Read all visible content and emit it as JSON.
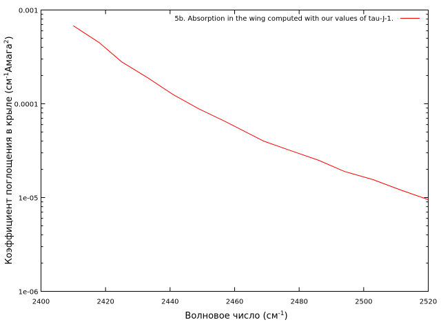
{
  "chart_data": {
    "type": "line",
    "title": "",
    "xlabel": "Волновое число (см",
    "xlabel_sup": "-1",
    "xlabel_end": ")",
    "ylabel_parts": [
      "Коэффициент поглощения в крыле (см",
      "-1",
      "Амага",
      "2",
      ")"
    ],
    "xlim": [
      2400,
      2520
    ],
    "ylim": [
      1e-06,
      0.001
    ],
    "y_scale": "log",
    "grid": false,
    "legend_position": "top-right",
    "x_ticks": [
      2400,
      2420,
      2440,
      2460,
      2480,
      2500,
      2520
    ],
    "x_tick_labels": [
      "2400",
      "2420",
      "2440",
      "2460",
      "2480",
      "2500",
      "2520"
    ],
    "y_ticks": [
      0.001,
      0.0001,
      1e-05,
      1e-06
    ],
    "y_tick_labels": [
      "0.001",
      "0.0001",
      "1e-05",
      "1e-06"
    ],
    "series": [
      {
        "name": "5b. Absorption in the wing computed with our values of tau-J-1.",
        "color": "#ff0000",
        "x": [
          2410,
          2418,
          2425,
          2433,
          2441,
          2449,
          2457,
          2463,
          2469,
          2477,
          2486,
          2494,
          2503,
          2511,
          2520
        ],
        "y": [
          0.00068,
          0.00045,
          0.00028,
          0.00019,
          0.000125,
          8.8e-05,
          6.5e-05,
          5.1e-05,
          4e-05,
          3.2e-05,
          2.5e-05,
          1.9e-05,
          1.55e-05,
          1.22e-05,
          9.5e-06
        ]
      }
    ]
  }
}
